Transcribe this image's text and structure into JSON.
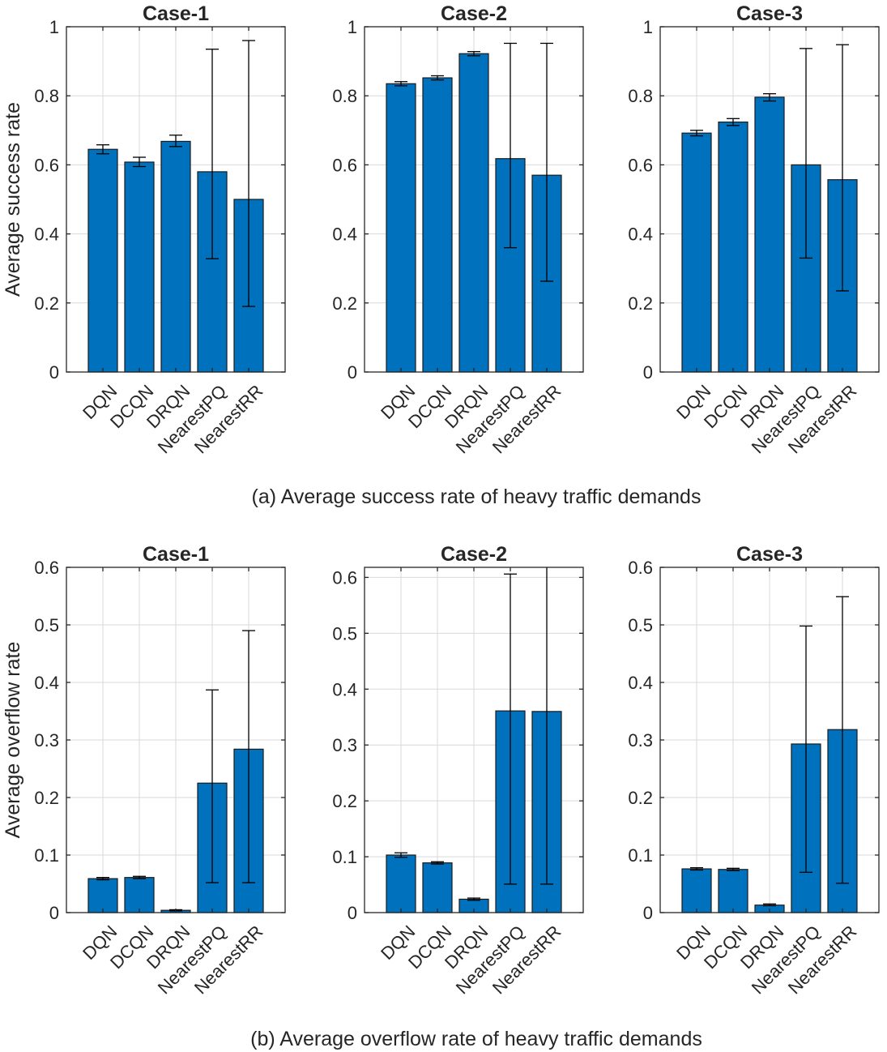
{
  "colors": {
    "bar": "#0072bd",
    "edge": "#1a1a1a",
    "error": "#000000",
    "grid": "#d9d9d9"
  },
  "captions": {
    "a": "(a) Average success rate of heavy traffic demands",
    "b": "(b) Average overflow rate of heavy traffic demands"
  },
  "chart_data": [
    {
      "type": "bar",
      "title": "Case-1",
      "ylabel": "Average success rate",
      "ylim": [
        0,
        1
      ],
      "yticks": [
        0,
        0.2,
        0.4,
        0.6,
        0.8,
        1
      ],
      "ytick_labels": [
        "0",
        "0.2",
        "0.4",
        "0.6",
        "0.8",
        "1"
      ],
      "grid": true,
      "categories": [
        "DQN",
        "DCQN",
        "DRQN",
        "NearestPQ",
        "NearestRR"
      ],
      "values": [
        0.645,
        0.608,
        0.668,
        0.58,
        0.5
      ],
      "error_low": [
        0.632,
        0.595,
        0.653,
        0.328,
        0.19
      ],
      "error_high": [
        0.658,
        0.622,
        0.686,
        0.935,
        0.96
      ]
    },
    {
      "type": "bar",
      "title": "Case-2",
      "ylabel": "",
      "ylim": [
        0,
        1
      ],
      "yticks": [
        0,
        0.2,
        0.4,
        0.6,
        0.8,
        1
      ],
      "ytick_labels": [
        "0",
        "0.2",
        "0.4",
        "0.6",
        "0.8",
        "1"
      ],
      "grid": true,
      "categories": [
        "DQN",
        "DCQN",
        "DRQN",
        "NearestPQ",
        "NearestRR"
      ],
      "values": [
        0.835,
        0.852,
        0.922,
        0.618,
        0.57
      ],
      "error_low": [
        0.829,
        0.846,
        0.916,
        0.36,
        0.263
      ],
      "error_high": [
        0.841,
        0.858,
        0.928,
        0.952,
        0.952
      ]
    },
    {
      "type": "bar",
      "title": "Case-3",
      "ylabel": "",
      "ylim": [
        0,
        1
      ],
      "yticks": [
        0,
        0.2,
        0.4,
        0.6,
        0.8,
        1
      ],
      "ytick_labels": [
        "0",
        "0.2",
        "0.4",
        "0.6",
        "0.8",
        "1"
      ],
      "grid": true,
      "categories": [
        "DQN",
        "DCQN",
        "DRQN",
        "NearestPQ",
        "NearestRR"
      ],
      "values": [
        0.692,
        0.724,
        0.796,
        0.6,
        0.557
      ],
      "error_low": [
        0.684,
        0.714,
        0.785,
        0.33,
        0.235
      ],
      "error_high": [
        0.7,
        0.734,
        0.806,
        0.937,
        0.948
      ]
    },
    {
      "type": "bar",
      "title": "Case-1",
      "ylabel": "Average overflow rate",
      "ylim": [
        0,
        0.6
      ],
      "yticks": [
        0,
        0.1,
        0.2,
        0.3,
        0.4,
        0.5,
        0.6
      ],
      "ytick_labels": [
        "0",
        "0.1",
        "0.2",
        "0.3",
        "0.4",
        "0.5",
        "0.6"
      ],
      "grid": true,
      "categories": [
        "DQN",
        "DCQN",
        "DRQN",
        "NearestPQ",
        "NearestRR"
      ],
      "values": [
        0.059,
        0.061,
        0.004,
        0.225,
        0.284
      ],
      "error_low": [
        0.057,
        0.059,
        0.003,
        0.052,
        0.052
      ],
      "error_high": [
        0.061,
        0.063,
        0.005,
        0.387,
        0.49
      ]
    },
    {
      "type": "bar",
      "title": "Case-2",
      "ylabel": "",
      "ylim": [
        0,
        0.618
      ],
      "yticks": [
        0,
        0.1,
        0.2,
        0.3,
        0.4,
        0.5,
        0.6
      ],
      "ytick_labels": [
        "0",
        "0.1",
        "0.2",
        "0.3",
        "0.4",
        "0.5",
        "0.6"
      ],
      "grid": true,
      "categories": [
        "DQN",
        "DCQN",
        "DRQN",
        "NearestPQ",
        "NearestRR"
      ],
      "values": [
        0.103,
        0.089,
        0.024,
        0.361,
        0.36
      ],
      "error_low": [
        0.099,
        0.087,
        0.022,
        0.051,
        0.051
      ],
      "error_high": [
        0.107,
        0.091,
        0.026,
        0.606,
        0.618
      ]
    },
    {
      "type": "bar",
      "title": "Case-3",
      "ylabel": "",
      "ylim": [
        0,
        0.6
      ],
      "yticks": [
        0,
        0.1,
        0.2,
        0.3,
        0.4,
        0.5,
        0.6
      ],
      "ytick_labels": [
        "0",
        "0.1",
        "0.2",
        "0.3",
        "0.4",
        "0.5",
        "0.6"
      ],
      "grid": true,
      "categories": [
        "DQN",
        "DCQN",
        "DRQN",
        "NearestPQ",
        "NearestRR"
      ],
      "values": [
        0.076,
        0.075,
        0.013,
        0.293,
        0.318
      ],
      "error_low": [
        0.074,
        0.073,
        0.012,
        0.07,
        0.051
      ],
      "error_high": [
        0.078,
        0.077,
        0.015,
        0.498,
        0.549
      ]
    }
  ]
}
